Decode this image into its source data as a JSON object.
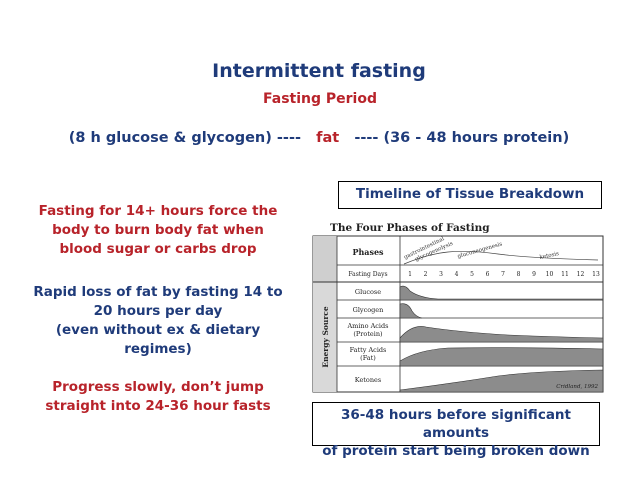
{
  "title": "Intermittent fasting",
  "subtitle": "Fasting Period",
  "period": {
    "left": "(8 h glucose & glycogen) ----",
    "middle": "fat",
    "right": "---- (36 - 48 hours protein)"
  },
  "left_column": {
    "p1_lines": [
      "Fasting for 14+ hours force the",
      "body to burn body fat when",
      "blood sugar or carbs drop"
    ],
    "p2_lines": [
      "Rapid loss of fat by fasting 14 to",
      "20 hours per day",
      "(even without ex & dietary",
      "regimes)"
    ],
    "p3_lines": [
      "Progress slowly, don’t jump",
      "straight into 24-36 hour fasts"
    ]
  },
  "timeline_label": "Timeline of Tissue Breakdown",
  "note_lines": [
    "36-48 hours before significant amounts",
    "of protein start being broken down"
  ],
  "figure": {
    "title": "The Four Phases of Fasting",
    "phases_header": "Phases",
    "days_label": "Fasting Days",
    "day_ticks": [
      "1",
      "2",
      "3",
      "4",
      "5",
      "6",
      "7",
      "8",
      "9",
      "10",
      "11",
      "12",
      "13"
    ],
    "phase_names": [
      "gastrointestinal",
      "glycogenolysis",
      "gluconeogenesis",
      "ketosis"
    ],
    "axis_label": "Energy Source",
    "rows": [
      {
        "lines": [
          "Glucose"
        ]
      },
      {
        "lines": [
          "Glycogen"
        ]
      },
      {
        "lines": [
          "Amino Acids",
          "(Protein)"
        ]
      },
      {
        "lines": [
          "Fatty Acids",
          "(Fat)"
        ]
      },
      {
        "lines": [
          "Ketones"
        ]
      }
    ],
    "credit": "Cridland, 1992"
  }
}
